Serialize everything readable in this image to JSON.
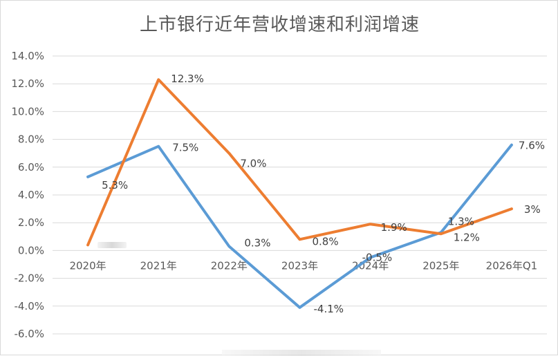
{
  "chart_data": {
    "type": "line",
    "title": "上市银行近年营收增速和利润增速",
    "categories": [
      "2020年",
      "2021年",
      "2022年",
      "2023年",
      "2024年",
      "2025年",
      "2026年Q1"
    ],
    "ylim": [
      -6.0,
      14.0
    ],
    "yticks": [
      "14.0%",
      "12.0%",
      "10.0%",
      "8.0%",
      "6.0%",
      "4.0%",
      "2.0%",
      "0.0%",
      "-2.0%",
      "-4.0%",
      "-6.0%"
    ],
    "ytick_values": [
      14,
      12,
      10,
      8,
      6,
      4,
      2,
      0,
      -2,
      -4,
      -6
    ],
    "grid": true,
    "series": [
      {
        "color": "#5B9BD5",
        "values": [
          5.3,
          7.5,
          0.3,
          -4.1,
          -0.5,
          1.3,
          7.6
        ],
        "labels": [
          "5.3%",
          "7.5%",
          "0.3%",
          "-4.1%",
          "-0.5%",
          "1.3%",
          "7.6%"
        ]
      },
      {
        "color": "#ED7D31",
        "values": [
          0.4,
          12.3,
          7.0,
          0.8,
          1.9,
          1.2,
          3.0
        ],
        "labels": [
          "",
          "12.3%",
          "7.0%",
          "0.8%",
          "1.9%",
          "1.2%",
          "3%"
        ]
      }
    ]
  }
}
